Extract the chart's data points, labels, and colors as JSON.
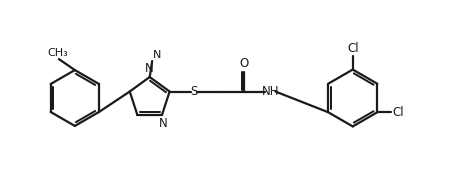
{
  "bg_color": "#ffffff",
  "line_color": "#1a1a1a",
  "line_width": 1.6,
  "font_size": 8.5,
  "figsize": [
    4.76,
    1.86
  ],
  "dpi": 100,
  "xlim": [
    0,
    9.5
  ],
  "ylim": [
    0,
    3.7
  ]
}
